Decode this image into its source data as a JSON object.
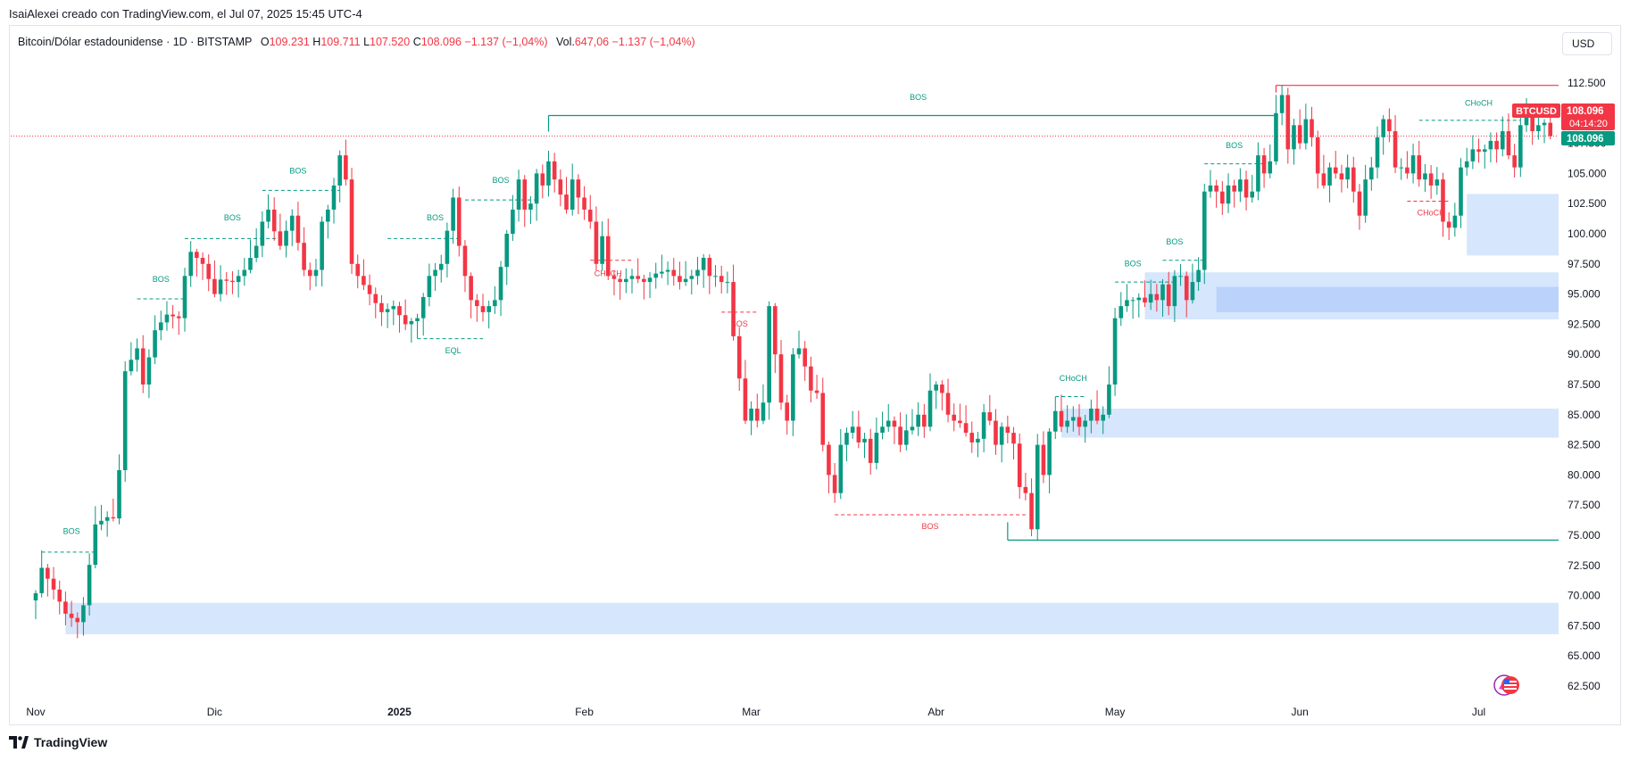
{
  "header": {
    "caption": "IsaiAlexei creado con TradingView.com, el Jul 07, 2025 15:45 UTC-4"
  },
  "legend": {
    "symbol": "Bitcoin/Dólar estadounidense · 1D · BITSTAMP",
    "o_label": "O",
    "o_value": "109.231",
    "h_label": "H",
    "h_value": "109.711",
    "l_label": "L",
    "l_value": "107.520",
    "c_label": "C",
    "c_value": "108.096",
    "change": "−1.137 (−1,04%)",
    "vol_label": "Vol.",
    "vol_value": "647,06",
    "vol_change": "−1.137 (−1,04%)"
  },
  "currency_button": "USD",
  "price_labels": {
    "ticker": "BTCUSD",
    "price": "108.096",
    "countdown": "04:14:20",
    "price2": "108.096"
  },
  "footer": {
    "brand": "TradingView"
  },
  "colors": {
    "up": "#089981",
    "down": "#f23645",
    "zone": "#d2e3fc",
    "zone_dark": "#b8cffb",
    "grid_border": "#e0e3eb"
  },
  "chart_data": {
    "type": "candlestick",
    "ylim": [
      61.0,
      115.0
    ],
    "y_ticks": [
      "112.500",
      "110.000",
      "107.500",
      "105.000",
      "102.500",
      "100.000",
      "97.500",
      "95.000",
      "92.500",
      "90.000",
      "87.500",
      "85.000",
      "82.500",
      "80.000",
      "77.500",
      "75.000",
      "72.500",
      "70.000",
      "67.500",
      "65.000",
      "62.500"
    ],
    "x_ticks": [
      {
        "day": 0,
        "label": "Nov"
      },
      {
        "day": 30,
        "label": "Dic"
      },
      {
        "day": 61,
        "label": "2025"
      },
      {
        "day": 92,
        "label": "Feb"
      },
      {
        "day": 120,
        "label": "Mar"
      },
      {
        "day": 151,
        "label": "Abr"
      },
      {
        "day": 181,
        "label": "May"
      },
      {
        "day": 212,
        "label": "Jun"
      },
      {
        "day": 242,
        "label": "Jul"
      }
    ],
    "anchors": [
      [
        0,
        70.2
      ],
      [
        1,
        72.3
      ],
      [
        3,
        70.5
      ],
      [
        5,
        68.5
      ],
      [
        7,
        67.8
      ],
      [
        8,
        69.2
      ],
      [
        10,
        75.9
      ],
      [
        12,
        76.5
      ],
      [
        13,
        76.4
      ],
      [
        14,
        80.4
      ],
      [
        15,
        88.6
      ],
      [
        17,
        90.5
      ],
      [
        18,
        87.5
      ],
      [
        20,
        92.0
      ],
      [
        22,
        93.3
      ],
      [
        24,
        93.0
      ],
      [
        25,
        96.5
      ],
      [
        26,
        98.5
      ],
      [
        28,
        97.5
      ],
      [
        30,
        95.0
      ],
      [
        31,
        96.2
      ],
      [
        33,
        96.0
      ],
      [
        35,
        97.0
      ],
      [
        37,
        99.0
      ],
      [
        38,
        101.0
      ],
      [
        39,
        102.0
      ],
      [
        40,
        100.2
      ],
      [
        41,
        99.0
      ],
      [
        43,
        101.5
      ],
      [
        45,
        97.0
      ],
      [
        46,
        96.5
      ],
      [
        47,
        97.0
      ],
      [
        48,
        101.0
      ],
      [
        49,
        102.0
      ],
      [
        50,
        104.0
      ],
      [
        51,
        106.5
      ],
      [
        52,
        104.5
      ],
      [
        53,
        97.5
      ],
      [
        54,
        96.5
      ],
      [
        56,
        95.0
      ],
      [
        58,
        93.5
      ],
      [
        60,
        94.0
      ],
      [
        62,
        92.5
      ],
      [
        64,
        93.0
      ],
      [
        66,
        96.5
      ],
      [
        68,
        97.5
      ],
      [
        70,
        103.0
      ],
      [
        71,
        99.0
      ],
      [
        72,
        96.5
      ],
      [
        73,
        94.5
      ],
      [
        75,
        93.5
      ],
      [
        77,
        94.5
      ],
      [
        79,
        100.0
      ],
      [
        80,
        102.0
      ],
      [
        81,
        104.5
      ],
      [
        82,
        102.0
      ],
      [
        83,
        102.5
      ],
      [
        84,
        105.0
      ],
      [
        85,
        104.0
      ],
      [
        86,
        106.0
      ],
      [
        87,
        104.5
      ],
      [
        89,
        102.0
      ],
      [
        90,
        104.5
      ],
      [
        91,
        103.0
      ],
      [
        92,
        102.0
      ],
      [
        93,
        101.0
      ],
      [
        94,
        97.5
      ],
      [
        95,
        99.8
      ],
      [
        96,
        96.5
      ],
      [
        98,
        96.0
      ],
      [
        100,
        96.5
      ],
      [
        102,
        96.0
      ],
      [
        104,
        96.7
      ],
      [
        106,
        97.0
      ],
      [
        108,
        96.0
      ],
      [
        110,
        96.5
      ],
      [
        111,
        97.0
      ],
      [
        112,
        98.0
      ],
      [
        113,
        96.5
      ],
      [
        114,
        96.5
      ],
      [
        115,
        96.0
      ],
      [
        116,
        96.0
      ],
      [
        117,
        91.5
      ],
      [
        118,
        88.0
      ],
      [
        119,
        84.5
      ],
      [
        120,
        85.5
      ],
      [
        121,
        84.5
      ],
      [
        122,
        86.0
      ],
      [
        123,
        94.0
      ],
      [
        124,
        90.0
      ],
      [
        125,
        86.0
      ],
      [
        126,
        84.5
      ],
      [
        127,
        90.0
      ],
      [
        128,
        90.5
      ],
      [
        129,
        89.0
      ],
      [
        130,
        87.0
      ],
      [
        131,
        86.8
      ],
      [
        132,
        82.5
      ],
      [
        133,
        80.0
      ],
      [
        134,
        78.5
      ],
      [
        135,
        82.5
      ],
      [
        136,
        83.5
      ],
      [
        137,
        84.0
      ],
      [
        138,
        82.7
      ],
      [
        139,
        83.0
      ],
      [
        140,
        81.0
      ],
      [
        141,
        83.5
      ],
      [
        142,
        84.0
      ],
      [
        143,
        84.5
      ],
      [
        144,
        84.0
      ],
      [
        145,
        82.5
      ],
      [
        146,
        83.7
      ],
      [
        147,
        84.0
      ],
      [
        148,
        85.0
      ],
      [
        149,
        84.0
      ],
      [
        150,
        87.0
      ],
      [
        151,
        87.5
      ],
      [
        152,
        86.8
      ],
      [
        153,
        85.0
      ],
      [
        154,
        84.5
      ],
      [
        155,
        84.3
      ],
      [
        157,
        82.7
      ],
      [
        158,
        83.0
      ],
      [
        159,
        85.2
      ],
      [
        160,
        84.5
      ],
      [
        161,
        82.5
      ],
      [
        162,
        84.0
      ],
      [
        163,
        83.5
      ],
      [
        164,
        82.6
      ],
      [
        165,
        79.0
      ],
      [
        166,
        78.5
      ],
      [
        167,
        75.5
      ],
      [
        168,
        82.5
      ],
      [
        169,
        80.0
      ],
      [
        170,
        83.6
      ],
      [
        171,
        85.3
      ],
      [
        172,
        84.0
      ],
      [
        173,
        84.5
      ],
      [
        174,
        84.8
      ],
      [
        175,
        84.0
      ],
      [
        176,
        84.5
      ],
      [
        177,
        85.5
      ],
      [
        178,
        84.5
      ],
      [
        179,
        85.0
      ],
      [
        180,
        87.5
      ],
      [
        181,
        93.0
      ],
      [
        182,
        94.0
      ],
      [
        183,
        94.5
      ],
      [
        184,
        94.5
      ],
      [
        185,
        94.7
      ],
      [
        186,
        94.3
      ],
      [
        187,
        95.0
      ],
      [
        188,
        94.5
      ],
      [
        189,
        95.8
      ],
      [
        190,
        94.0
      ],
      [
        191,
        96.5
      ],
      [
        192,
        96.5
      ],
      [
        193,
        94.5
      ],
      [
        194,
        96.0
      ],
      [
        195,
        97.0
      ],
      [
        196,
        103.5
      ],
      [
        197,
        104.0
      ],
      [
        198,
        103.5
      ],
      [
        199,
        102.5
      ],
      [
        200,
        104.0
      ],
      [
        201,
        103.5
      ],
      [
        202,
        104.5
      ],
      [
        203,
        103.0
      ],
      [
        204,
        103.5
      ],
      [
        205,
        106.5
      ],
      [
        206,
        105.0
      ],
      [
        207,
        106.0
      ],
      [
        208,
        110.0
      ],
      [
        209,
        111.5
      ],
      [
        210,
        107.0
      ],
      [
        211,
        109.0
      ],
      [
        212,
        107.5
      ],
      [
        213,
        109.5
      ],
      [
        214,
        108.0
      ],
      [
        215,
        105.0
      ],
      [
        216,
        104.0
      ],
      [
        217,
        105.5
      ],
      [
        218,
        105.0
      ],
      [
        219,
        104.5
      ],
      [
        220,
        105.5
      ],
      [
        221,
        103.5
      ],
      [
        222,
        101.5
      ],
      [
        223,
        104.5
      ],
      [
        224,
        105.5
      ],
      [
        225,
        108.0
      ],
      [
        226,
        109.5
      ],
      [
        227,
        108.5
      ],
      [
        228,
        105.5
      ],
      [
        229,
        105.5
      ],
      [
        230,
        105.0
      ],
      [
        231,
        106.5
      ],
      [
        232,
        104.5
      ],
      [
        233,
        105.0
      ],
      [
        234,
        104.0
      ],
      [
        235,
        104.5
      ],
      [
        236,
        101.0
      ],
      [
        237,
        100.5
      ],
      [
        238,
        101.5
      ],
      [
        239,
        105.5
      ],
      [
        240,
        106.0
      ],
      [
        241,
        107.0
      ],
      [
        242,
        106.8
      ],
      [
        243,
        107.0
      ],
      [
        244,
        107.7
      ],
      [
        245,
        107.0
      ],
      [
        246,
        108.5
      ],
      [
        247,
        106.5
      ],
      [
        248,
        105.5
      ],
      [
        249,
        109.0
      ],
      [
        250,
        110.0
      ],
      [
        251,
        108.5
      ],
      [
        252,
        109.0
      ],
      [
        253,
        109.2
      ],
      [
        254,
        108.1
      ]
    ],
    "zones": [
      {
        "x0": 5,
        "x1": 265,
        "y0": 66.8,
        "y1": 69.4,
        "shade": "light"
      },
      {
        "x0": 186,
        "x1": 265,
        "y0": 92.9,
        "y1": 96.8,
        "shade": "light"
      },
      {
        "x0": 198,
        "x1": 265,
        "y0": 93.5,
        "y1": 95.6,
        "shade": "dark"
      },
      {
        "x0": 172,
        "x1": 265,
        "y0": 83.1,
        "y1": 85.5,
        "shade": "light"
      },
      {
        "x0": 240,
        "x1": 265,
        "y0": 98.2,
        "y1": 103.3,
        "shade": "light"
      }
    ],
    "structure_lines": [
      {
        "x0": 1,
        "x1": 10,
        "y": 73.6,
        "color": "up",
        "dash": true
      },
      {
        "x0": 17,
        "x1": 25,
        "y": 94.6,
        "color": "up",
        "dash": true
      },
      {
        "x0": 25,
        "x1": 41,
        "y": 99.6,
        "color": "up",
        "dash": true
      },
      {
        "x0": 38,
        "x1": 51,
        "y": 103.6,
        "color": "up",
        "dash": true
      },
      {
        "x0": 59,
        "x1": 71,
        "y": 99.6,
        "color": "up",
        "dash": true
      },
      {
        "x0": 72,
        "x1": 84,
        "y": 102.8,
        "color": "up",
        "dash": true
      },
      {
        "x0": 93,
        "x1": 100,
        "y": 97.8,
        "color": "down",
        "dash": true
      },
      {
        "x0": 115,
        "x1": 121,
        "y": 93.5,
        "color": "down",
        "dash": true
      },
      {
        "x0": 134,
        "x1": 166,
        "y": 76.7,
        "color": "down",
        "dash": true
      },
      {
        "x0": 171,
        "x1": 176,
        "y": 86.5,
        "color": "up",
        "dash": true
      },
      {
        "x0": 181,
        "x1": 191,
        "y": 96.0,
        "color": "up",
        "dash": true
      },
      {
        "x0": 189,
        "x1": 196,
        "y": 97.8,
        "color": "up",
        "dash": true
      },
      {
        "x0": 196,
        "x1": 206,
        "y": 105.8,
        "color": "up",
        "dash": true
      },
      {
        "x0": 230,
        "x1": 237,
        "y": 102.7,
        "color": "down",
        "dash": true
      },
      {
        "x0": 232,
        "x1": 249,
        "y": 109.4,
        "color": "up",
        "dash": true
      },
      {
        "x0": 64,
        "x1": 75,
        "y": 91.3,
        "color": "up",
        "dash": true
      },
      {
        "x0": 86,
        "x1": 208,
        "y": 109.8,
        "color": "up",
        "dash": false
      },
      {
        "x0": 208,
        "x1": 265,
        "y": 112.3,
        "color": "down",
        "dash": false
      },
      {
        "x0": 163,
        "x1": 265,
        "y": 74.6,
        "color": "up",
        "dash": false
      }
    ],
    "annotations": [
      {
        "x": 6,
        "y": 75.1,
        "text": "BOS",
        "color": "up"
      },
      {
        "x": 21,
        "y": 96.0,
        "text": "BOS",
        "color": "up"
      },
      {
        "x": 33,
        "y": 101.1,
        "text": "BOS",
        "color": "up"
      },
      {
        "x": 44,
        "y": 105.0,
        "text": "BOS",
        "color": "up"
      },
      {
        "x": 67,
        "y": 101.1,
        "text": "BOS",
        "color": "up"
      },
      {
        "x": 78,
        "y": 104.2,
        "text": "BOS",
        "color": "up"
      },
      {
        "x": 70,
        "y": 90.1,
        "text": "EQL",
        "color": "up"
      },
      {
        "x": 148,
        "y": 111.1,
        "text": "BOS",
        "color": "up"
      },
      {
        "x": 96,
        "y": 96.5,
        "text": "CHoCH",
        "color": "down"
      },
      {
        "x": 118,
        "y": 92.3,
        "text": "BOS",
        "color": "down"
      },
      {
        "x": 150,
        "y": 75.5,
        "text": "BOS",
        "color": "down"
      },
      {
        "x": 174,
        "y": 87.8,
        "text": "CHoCH",
        "color": "up"
      },
      {
        "x": 184,
        "y": 97.3,
        "text": "BOS",
        "color": "up"
      },
      {
        "x": 191,
        "y": 99.1,
        "text": "BOS",
        "color": "up"
      },
      {
        "x": 201,
        "y": 107.1,
        "text": "BOS",
        "color": "up"
      },
      {
        "x": 234,
        "y": 101.5,
        "text": "CHoCH",
        "color": "down"
      },
      {
        "x": 242,
        "y": 110.6,
        "text": "CHoCH",
        "color": "up"
      }
    ],
    "last_price": 108.096
  }
}
